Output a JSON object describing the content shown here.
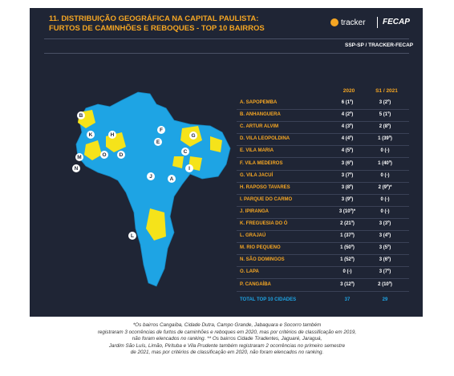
{
  "header": {
    "title_lines": [
      "11. DISTRIBUIÇÃO GEOGRÁFICA NA CAPITAL PAULISTA:",
      "FURTOS DE CAMINHÕES E REBOQUES - TOP 10 BAIRROS"
    ],
    "logo_tracker": "tracker",
    "logo_fecap": "FECAP",
    "source": "SSP-SP / TRACKER-FECAP"
  },
  "map": {
    "markers": [
      "B",
      "K",
      "H",
      "M",
      "N",
      "O",
      "D",
      "F",
      "G",
      "E",
      "C",
      "J",
      "A",
      "I",
      "L"
    ]
  },
  "table": {
    "columns": [
      "2020",
      "S1 / 2021"
    ],
    "rows": [
      [
        "A. SAPOPEMBA",
        "6 (1º)",
        "3 (2º)"
      ],
      [
        "B. ANHANGUERA",
        "4 (2º)",
        "5 (1º)"
      ],
      [
        "C. ARTUR ALVIM",
        "4 (3º)",
        "2 (8º)"
      ],
      [
        "D. VILA LEOPOLDINA",
        "4 (4º)",
        "1 (39º)"
      ],
      [
        "E. VILA MARIA",
        "4 (5º)",
        "0 (-)"
      ],
      [
        "F. VILA MEDEIROS",
        "3 (6º)",
        "1 (40º)"
      ],
      [
        "G. VILA JACUÍ",
        "3 (7º)",
        "0 (-)"
      ],
      [
        "H. RAPOSO TAVARES",
        "3 (8º)",
        "2 (9º)*"
      ],
      [
        "I. PARQUE DO CARMO",
        "3 (9º)",
        "0 (-)"
      ],
      [
        "J. IPIRANGA",
        "3 (10º)*",
        "0 (-)"
      ],
      [
        "K. FREGUESIA DO Ó",
        "2 (21º)",
        "3 (3º)"
      ],
      [
        "L. GRAJAÚ",
        "1 (37º)",
        "3 (4º)"
      ],
      [
        "M. RIO PEQUENO",
        "1 (50º)",
        "3 (5º)"
      ],
      [
        "N. SÃO DOMINGOS",
        "1 (52º)",
        "3 (6º)"
      ],
      [
        "O. LAPA",
        "0 (-)",
        "3 (7º)"
      ],
      [
        "P. CANGAÍBA",
        "3 (12º)",
        "2 (10º)"
      ]
    ],
    "total": [
      "TOTAL TOP 10 CIDADES",
      "37",
      "29"
    ]
  },
  "footnote_lines": [
    "*Os bairros Cangaíba, Cidade Dutra, Campo Grande, Jabaquara e Socorro também",
    "registraram 3 ocorrências de furtos de caminhões e reboques em 2020, mas por critérios de classificação em 2019,",
    "não foram elencados no ranking. ** Os bairros Cidade Tiradentes, Jaguaré, Jaraguá,",
    "Jardim São Luís, Limão, Pirituba e Vila Prudente também registraram 2 ocorrências no primeiro semestre",
    "de 2021, mas por critérios de classificação em 2020, não foram elencados no ranking."
  ]
}
